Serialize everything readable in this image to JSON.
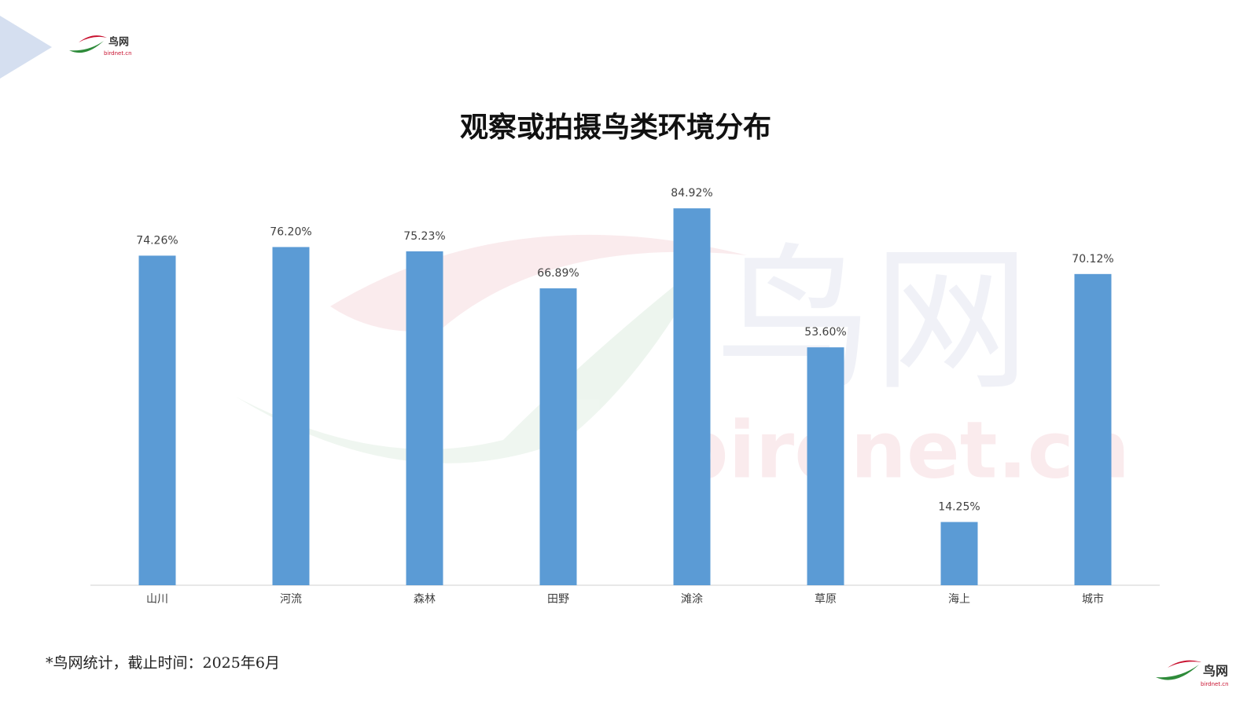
{
  "chart_data": {
    "type": "bar",
    "title": "观察或拍摄鸟类环境分布",
    "categories": [
      "山川",
      "河流",
      "森林",
      "田野",
      "滩涂",
      "草原",
      "海上",
      "城市"
    ],
    "values": [
      74.26,
      76.2,
      75.23,
      66.89,
      84.92,
      53.6,
      14.25,
      70.12
    ],
    "value_labels": [
      "74.26%",
      "76.20%",
      "75.23%",
      "66.89%",
      "84.92%",
      "53.60%",
      "14.25%",
      "70.12%"
    ],
    "color": "#5b9bd5",
    "ylim": [
      0,
      100
    ]
  },
  "logo": {
    "name": "鸟网",
    "url": "birdnet.cn"
  },
  "footnote": "*鸟网统计，截止时间：2025年6月"
}
